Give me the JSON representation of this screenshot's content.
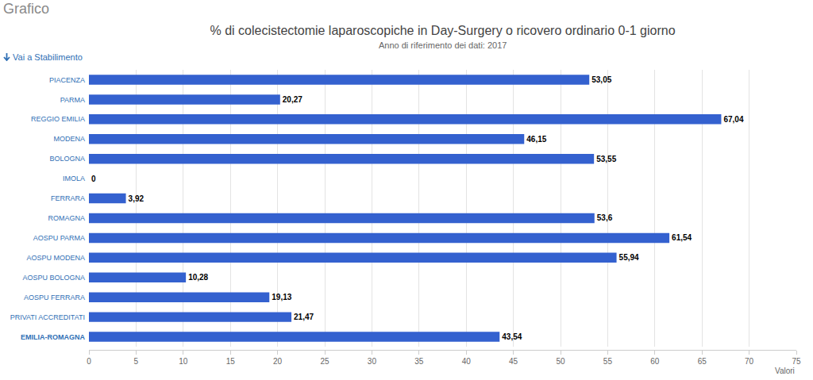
{
  "header": {
    "heading": "Grafico",
    "link": "Vai a Stabilimento"
  },
  "chart_data": {
    "type": "bar",
    "orientation": "horizontal",
    "title": "% di colecistectomie laparoscopiche in Day-Surgery o ricovero ordinario 0-1 giorno",
    "subtitle": "Anno di riferimento dei dati: 2017",
    "xlabel": "Valori",
    "categories": [
      "PIACENZA",
      "PARMA",
      "REGGIO EMILIA",
      "MODENA",
      "BOLOGNA",
      "IMOLA",
      "FERRARA",
      "ROMAGNA",
      "AOSPU PARMA",
      "AOSPU MODENA",
      "AOSPU BOLOGNA",
      "AOSPU FERRARA",
      "PRIVATI ACCREDITATI",
      "EMILIA-ROMAGNA"
    ],
    "values": [
      53.05,
      20.27,
      67.04,
      46.15,
      53.55,
      0,
      3.92,
      53.6,
      61.54,
      55.94,
      10.28,
      19.13,
      21.47,
      43.54
    ],
    "value_labels": [
      "53,05",
      "20,27",
      "67,04",
      "46,15",
      "53,55",
      "0",
      "3,92",
      "53,6",
      "61,54",
      "55,94",
      "10,28",
      "19,13",
      "21,47",
      "43,54"
    ],
    "color": "#3461cf",
    "xlim": [
      0,
      75
    ],
    "xticks": [
      0,
      5,
      10,
      15,
      20,
      25,
      30,
      35,
      40,
      45,
      50,
      55,
      60,
      65,
      70,
      75
    ],
    "grid": true,
    "data_labels": true
  }
}
